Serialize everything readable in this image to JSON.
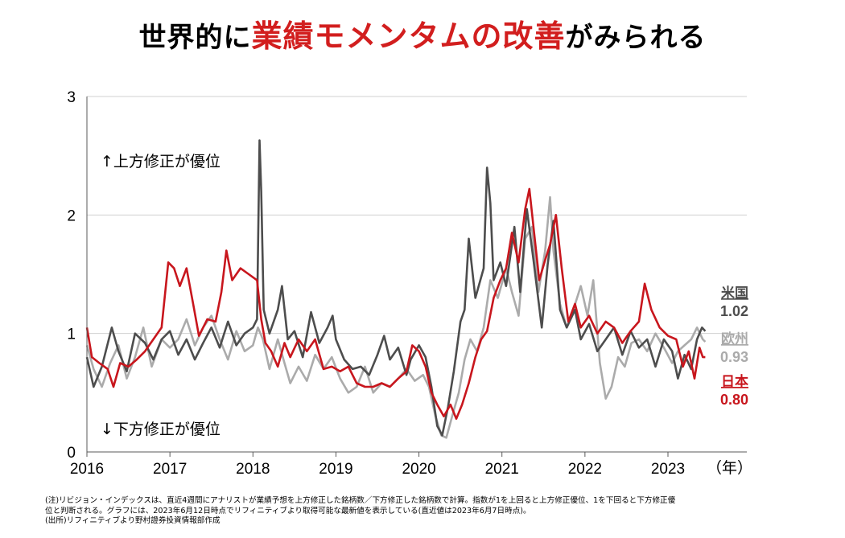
{
  "title": {
    "pre": "世界的に",
    "highlight": "業績モメンタムの改善",
    "post": "がみられる"
  },
  "colors": {
    "us": "#4d4d4d",
    "eu": "#ababab",
    "jp": "#c8161d",
    "grid": "#d0d0d0",
    "axis": "#595959"
  },
  "chart_data": {
    "type": "line",
    "xlim": [
      2016,
      2023.95
    ],
    "ylim": [
      0,
      3
    ],
    "x_ticks": [
      "2016",
      "2017",
      "2018",
      "2019",
      "2020",
      "2021",
      "2022",
      "2023"
    ],
    "y_ticks": [
      "0",
      "1",
      "2",
      "3"
    ],
    "xunit": "（年）",
    "annotations": {
      "upper": "↑上方修正が優位",
      "lower": "↓下方修正が優位"
    },
    "series": [
      {
        "name": "米国",
        "key": "us",
        "last_label": "1.02",
        "points": [
          [
            2016.0,
            0.8
          ],
          [
            2016.08,
            0.55
          ],
          [
            2016.18,
            0.72
          ],
          [
            2016.3,
            1.05
          ],
          [
            2016.38,
            0.85
          ],
          [
            2016.48,
            0.68
          ],
          [
            2016.58,
            1.0
          ],
          [
            2016.7,
            0.92
          ],
          [
            2016.8,
            0.78
          ],
          [
            2016.9,
            0.95
          ],
          [
            2017.0,
            1.02
          ],
          [
            2017.1,
            0.82
          ],
          [
            2017.2,
            0.95
          ],
          [
            2017.3,
            0.78
          ],
          [
            2017.4,
            0.92
          ],
          [
            2017.5,
            1.05
          ],
          [
            2017.6,
            0.88
          ],
          [
            2017.7,
            1.1
          ],
          [
            2017.8,
            0.9
          ],
          [
            2017.9,
            1.0
          ],
          [
            2018.0,
            1.05
          ],
          [
            2018.05,
            1.12
          ],
          [
            2018.08,
            2.63
          ],
          [
            2018.1,
            2.2
          ],
          [
            2018.13,
            1.2
          ],
          [
            2018.2,
            1.0
          ],
          [
            2018.3,
            1.2
          ],
          [
            2018.35,
            1.4
          ],
          [
            2018.42,
            0.95
          ],
          [
            2018.5,
            1.02
          ],
          [
            2018.6,
            0.8
          ],
          [
            2018.7,
            1.18
          ],
          [
            2018.8,
            0.92
          ],
          [
            2018.9,
            1.05
          ],
          [
            2018.96,
            1.15
          ],
          [
            2019.0,
            0.95
          ],
          [
            2019.1,
            0.78
          ],
          [
            2019.2,
            0.7
          ],
          [
            2019.3,
            0.72
          ],
          [
            2019.4,
            0.65
          ],
          [
            2019.5,
            0.82
          ],
          [
            2019.58,
            0.98
          ],
          [
            2019.65,
            0.78
          ],
          [
            2019.75,
            0.88
          ],
          [
            2019.85,
            0.65
          ],
          [
            2019.9,
            0.78
          ],
          [
            2020.0,
            0.9
          ],
          [
            2020.08,
            0.8
          ],
          [
            2020.15,
            0.55
          ],
          [
            2020.22,
            0.22
          ],
          [
            2020.28,
            0.14
          ],
          [
            2020.35,
            0.38
          ],
          [
            2020.42,
            0.68
          ],
          [
            2020.5,
            1.1
          ],
          [
            2020.55,
            1.2
          ],
          [
            2020.6,
            1.8
          ],
          [
            2020.68,
            1.3
          ],
          [
            2020.78,
            1.55
          ],
          [
            2020.82,
            2.4
          ],
          [
            2020.86,
            2.1
          ],
          [
            2020.9,
            1.45
          ],
          [
            2020.98,
            1.6
          ],
          [
            2021.05,
            1.4
          ],
          [
            2021.15,
            1.9
          ],
          [
            2021.22,
            1.35
          ],
          [
            2021.3,
            2.05
          ],
          [
            2021.38,
            1.62
          ],
          [
            2021.48,
            1.05
          ],
          [
            2021.55,
            1.58
          ],
          [
            2021.62,
            1.95
          ],
          [
            2021.7,
            1.2
          ],
          [
            2021.78,
            1.05
          ],
          [
            2021.88,
            1.2
          ],
          [
            2021.95,
            0.95
          ],
          [
            2022.05,
            1.08
          ],
          [
            2022.15,
            0.85
          ],
          [
            2022.25,
            0.95
          ],
          [
            2022.35,
            1.05
          ],
          [
            2022.45,
            0.82
          ],
          [
            2022.55,
            1.02
          ],
          [
            2022.65,
            0.88
          ],
          [
            2022.75,
            0.95
          ],
          [
            2022.85,
            0.72
          ],
          [
            2022.95,
            0.95
          ],
          [
            2023.05,
            0.85
          ],
          [
            2023.12,
            0.62
          ],
          [
            2023.2,
            0.82
          ],
          [
            2023.28,
            0.7
          ],
          [
            2023.35,
            0.95
          ],
          [
            2023.41,
            1.05
          ],
          [
            2023.45,
            1.02
          ]
        ]
      },
      {
        "name": "欧州",
        "key": "eu",
        "last_label": "0.93",
        "points": [
          [
            2016.0,
            0.9
          ],
          [
            2016.08,
            0.7
          ],
          [
            2016.18,
            0.55
          ],
          [
            2016.28,
            0.75
          ],
          [
            2016.38,
            0.9
          ],
          [
            2016.48,
            0.62
          ],
          [
            2016.58,
            0.8
          ],
          [
            2016.68,
            1.05
          ],
          [
            2016.78,
            0.72
          ],
          [
            2016.9,
            0.95
          ],
          [
            2017.0,
            0.88
          ],
          [
            2017.1,
            0.95
          ],
          [
            2017.2,
            1.12
          ],
          [
            2017.3,
            0.9
          ],
          [
            2017.4,
            1.05
          ],
          [
            2017.5,
            1.15
          ],
          [
            2017.6,
            0.95
          ],
          [
            2017.7,
            0.78
          ],
          [
            2017.8,
            1.02
          ],
          [
            2017.9,
            0.85
          ],
          [
            2018.0,
            0.9
          ],
          [
            2018.06,
            1.05
          ],
          [
            2018.12,
            0.95
          ],
          [
            2018.2,
            0.7
          ],
          [
            2018.3,
            0.95
          ],
          [
            2018.38,
            0.75
          ],
          [
            2018.45,
            0.58
          ],
          [
            2018.55,
            0.72
          ],
          [
            2018.65,
            0.6
          ],
          [
            2018.75,
            0.82
          ],
          [
            2018.85,
            0.7
          ],
          [
            2018.95,
            0.8
          ],
          [
            2019.05,
            0.62
          ],
          [
            2019.15,
            0.5
          ],
          [
            2019.25,
            0.55
          ],
          [
            2019.35,
            0.72
          ],
          [
            2019.45,
            0.5
          ],
          [
            2019.55,
            0.58
          ],
          [
            2019.65,
            0.55
          ],
          [
            2019.75,
            0.62
          ],
          [
            2019.85,
            0.7
          ],
          [
            2019.95,
            0.6
          ],
          [
            2020.05,
            0.65
          ],
          [
            2020.12,
            0.55
          ],
          [
            2020.2,
            0.3
          ],
          [
            2020.27,
            0.14
          ],
          [
            2020.33,
            0.12
          ],
          [
            2020.4,
            0.3
          ],
          [
            2020.48,
            0.5
          ],
          [
            2020.55,
            0.78
          ],
          [
            2020.62,
            0.95
          ],
          [
            2020.7,
            0.85
          ],
          [
            2020.78,
            1.05
          ],
          [
            2020.86,
            1.45
          ],
          [
            2020.95,
            1.3
          ],
          [
            2021.05,
            1.55
          ],
          [
            2021.12,
            1.35
          ],
          [
            2021.2,
            1.15
          ],
          [
            2021.28,
            1.8
          ],
          [
            2021.36,
            1.9
          ],
          [
            2021.44,
            1.35
          ],
          [
            2021.52,
            1.7
          ],
          [
            2021.58,
            2.15
          ],
          [
            2021.62,
            1.7
          ],
          [
            2021.7,
            1.25
          ],
          [
            2021.78,
            1.05
          ],
          [
            2021.86,
            1.2
          ],
          [
            2021.95,
            1.4
          ],
          [
            2022.03,
            1.15
          ],
          [
            2022.1,
            1.45
          ],
          [
            2022.18,
            0.75
          ],
          [
            2022.25,
            0.45
          ],
          [
            2022.32,
            0.55
          ],
          [
            2022.4,
            0.8
          ],
          [
            2022.48,
            0.72
          ],
          [
            2022.56,
            0.92
          ],
          [
            2022.65,
            0.95
          ],
          [
            2022.75,
            0.85
          ],
          [
            2022.85,
            1.0
          ],
          [
            2022.95,
            0.88
          ],
          [
            2023.05,
            0.75
          ],
          [
            2023.12,
            0.85
          ],
          [
            2023.2,
            0.9
          ],
          [
            2023.28,
            0.95
          ],
          [
            2023.35,
            1.05
          ],
          [
            2023.42,
            0.95
          ],
          [
            2023.45,
            0.93
          ]
        ]
      },
      {
        "name": "日本",
        "key": "jp",
        "last_label": "0.80",
        "points": [
          [
            2016.0,
            1.05
          ],
          [
            2016.06,
            0.8
          ],
          [
            2016.15,
            0.75
          ],
          [
            2016.25,
            0.7
          ],
          [
            2016.32,
            0.55
          ],
          [
            2016.4,
            0.75
          ],
          [
            2016.5,
            0.72
          ],
          [
            2016.6,
            0.78
          ],
          [
            2016.7,
            0.85
          ],
          [
            2016.8,
            0.95
          ],
          [
            2016.9,
            1.05
          ],
          [
            2016.98,
            1.6
          ],
          [
            2017.05,
            1.55
          ],
          [
            2017.12,
            1.4
          ],
          [
            2017.2,
            1.55
          ],
          [
            2017.28,
            1.25
          ],
          [
            2017.35,
            0.98
          ],
          [
            2017.45,
            1.12
          ],
          [
            2017.55,
            1.1
          ],
          [
            2017.62,
            1.35
          ],
          [
            2017.68,
            1.7
          ],
          [
            2017.75,
            1.45
          ],
          [
            2017.85,
            1.55
          ],
          [
            2017.95,
            1.5
          ],
          [
            2018.05,
            1.45
          ],
          [
            2018.1,
            1.12
          ],
          [
            2018.15,
            0.92
          ],
          [
            2018.22,
            0.85
          ],
          [
            2018.3,
            0.72
          ],
          [
            2018.38,
            0.92
          ],
          [
            2018.45,
            0.8
          ],
          [
            2018.55,
            0.95
          ],
          [
            2018.65,
            0.85
          ],
          [
            2018.75,
            0.95
          ],
          [
            2018.85,
            0.7
          ],
          [
            2018.95,
            0.72
          ],
          [
            2019.05,
            0.68
          ],
          [
            2019.15,
            0.72
          ],
          [
            2019.25,
            0.58
          ],
          [
            2019.35,
            0.55
          ],
          [
            2019.45,
            0.55
          ],
          [
            2019.55,
            0.58
          ],
          [
            2019.65,
            0.55
          ],
          [
            2019.75,
            0.62
          ],
          [
            2019.85,
            0.68
          ],
          [
            2019.92,
            0.9
          ],
          [
            2020.0,
            0.85
          ],
          [
            2020.08,
            0.72
          ],
          [
            2020.15,
            0.5
          ],
          [
            2020.22,
            0.4
          ],
          [
            2020.3,
            0.3
          ],
          [
            2020.38,
            0.4
          ],
          [
            2020.45,
            0.28
          ],
          [
            2020.52,
            0.4
          ],
          [
            2020.6,
            0.58
          ],
          [
            2020.68,
            0.8
          ],
          [
            2020.75,
            0.95
          ],
          [
            2020.82,
            1.02
          ],
          [
            2020.9,
            1.3
          ],
          [
            2020.98,
            1.45
          ],
          [
            2021.05,
            1.55
          ],
          [
            2021.12,
            1.85
          ],
          [
            2021.2,
            1.6
          ],
          [
            2021.28,
            2.05
          ],
          [
            2021.33,
            2.22
          ],
          [
            2021.38,
            1.9
          ],
          [
            2021.45,
            1.45
          ],
          [
            2021.52,
            1.62
          ],
          [
            2021.58,
            1.75
          ],
          [
            2021.65,
            2.0
          ],
          [
            2021.72,
            1.55
          ],
          [
            2021.8,
            1.1
          ],
          [
            2021.88,
            1.25
          ],
          [
            2021.95,
            1.05
          ],
          [
            2022.05,
            1.15
          ],
          [
            2022.15,
            1.0
          ],
          [
            2022.25,
            1.1
          ],
          [
            2022.35,
            1.05
          ],
          [
            2022.45,
            0.92
          ],
          [
            2022.55,
            1.02
          ],
          [
            2022.65,
            1.1
          ],
          [
            2022.72,
            1.42
          ],
          [
            2022.8,
            1.2
          ],
          [
            2022.9,
            1.05
          ],
          [
            2023.0,
            0.98
          ],
          [
            2023.1,
            0.95
          ],
          [
            2023.18,
            0.72
          ],
          [
            2023.25,
            0.85
          ],
          [
            2023.32,
            0.62
          ],
          [
            2023.38,
            0.88
          ],
          [
            2023.42,
            0.8
          ],
          [
            2023.45,
            0.8
          ]
        ]
      }
    ]
  },
  "notes": [
    "(注)リビジョン・インデックスは、直近4週間にアナリストが業績予想を上方修正した銘柄数／下方修正した銘柄数で計算。指数が1を上回ると上方修正優位、1を下回ると下方修正優",
    "位と判断される。グラフには、2023年6月12日時点でリフィニティブより取得可能な最新値を表示している(直近値は2023年6月7日時点)。",
    "(出所)リフィニティブより野村證券投資情報部作成"
  ]
}
